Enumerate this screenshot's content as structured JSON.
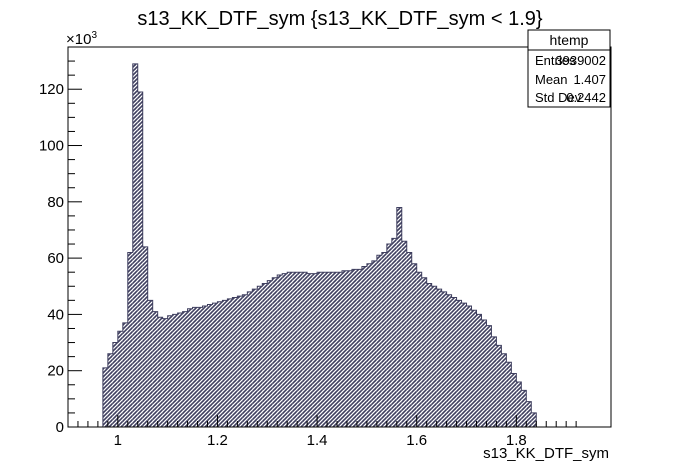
{
  "chart_data": {
    "type": "bar",
    "title": "s13_KK_DTF_sym {s13_KK_DTF_sym < 1.9}",
    "xlabel": "s13_KK_DTF_sym",
    "ylabel": "",
    "y_exponent_label": "×10",
    "y_exponent_power": "3",
    "xlim": [
      0.9,
      1.99
    ],
    "ylim": [
      0,
      135000
    ],
    "x_ticks": [
      1,
      1.2,
      1.4,
      1.6,
      1.8
    ],
    "x_tick_labels": [
      "1",
      "1.2",
      "1.4",
      "1.6",
      "1.8"
    ],
    "y_ticks": [
      0,
      20000,
      40000,
      60000,
      80000,
      100000,
      120000
    ],
    "y_tick_labels": [
      "0",
      "20",
      "40",
      "60",
      "80",
      "100",
      "120"
    ],
    "grid": false,
    "fill_color": "#3f3f5f",
    "hatch": "diagonal",
    "bin_width": 0.01,
    "bins_x_start": 0.96,
    "values": [
      0,
      21000,
      26000,
      30000,
      34000,
      37000,
      62000,
      129000,
      119000,
      64000,
      45000,
      41000,
      39000,
      38500,
      39500,
      40000,
      40500,
      41000,
      42000,
      42500,
      42500,
      43000,
      43500,
      44000,
      44500,
      45000,
      45500,
      46000,
      46500,
      47000,
      48000,
      49000,
      50000,
      51000,
      52000,
      53000,
      54000,
      54500,
      55000,
      55000,
      55000,
      55000,
      54500,
      54500,
      55000,
      55000,
      55000,
      55000,
      55000,
      55500,
      55500,
      56000,
      56000,
      57000,
      58000,
      59000,
      61000,
      62000,
      65000,
      67000,
      78000,
      66000,
      62000,
      58000,
      55000,
      53000,
      51000,
      50000,
      49000,
      48000,
      47000,
      46000,
      45000,
      44000,
      43000,
      41500,
      40000,
      38000,
      36000,
      32000,
      29000,
      26000,
      23000,
      19000,
      16000,
      13000,
      9000,
      5000,
      0
    ],
    "stats": {
      "name": "htemp",
      "rows": [
        {
          "label": "Entries",
          "value": "3939002"
        },
        {
          "label": "Mean",
          "value": "1.407"
        },
        {
          "label": "Std Dev",
          "value": "0.2442"
        }
      ]
    }
  }
}
